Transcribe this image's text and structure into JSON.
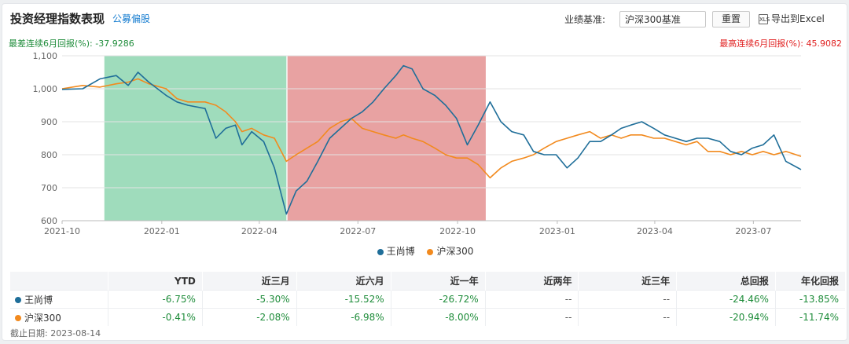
{
  "header": {
    "title": "投资经理指数表现",
    "subtitle": "公募偏股",
    "benchmark_label": "业绩基准:",
    "benchmark_value": "沪深300基准",
    "reset_label": "重置",
    "export_icon": "XLS",
    "export_label": "导出到Excel"
  },
  "stats": {
    "worst": "最差连续6月回报(%): -37.9286",
    "best": "最高连续6月回报(%): 45.9082"
  },
  "colors": {
    "series1": "#1f6e99",
    "series2": "#f28a1e",
    "best_period": "#e8a2a2",
    "worst_period": "#9fdcbc"
  },
  "chart_data": {
    "type": "line",
    "xlim": [
      "2021-10-01",
      "2023-08-14"
    ],
    "ylim": [
      600,
      1100
    ],
    "yticks": [
      600,
      700,
      800,
      900,
      1000,
      1100
    ],
    "ytick_labels": [
      "600",
      "700",
      "800",
      "900",
      "1,000",
      "1,100"
    ],
    "xtick_labels": [
      "2021-10",
      "2022-01",
      "2022-04",
      "2022-07",
      "2022-10",
      "2023-01",
      "2023-04",
      "2023-07"
    ],
    "xtick_dates": [
      "2021-10-01",
      "2022-01-01",
      "2022-04-01",
      "2022-07-01",
      "2022-10-01",
      "2023-01-01",
      "2023-04-01",
      "2023-07-01"
    ],
    "worst_period": [
      "2021-11-09",
      "2022-04-26"
    ],
    "best_period": [
      "2022-04-27",
      "2022-10-27"
    ],
    "series": [
      {
        "name": "王尚博",
        "x": [
          "2021-10-01",
          "2021-10-20",
          "2021-11-05",
          "2021-11-20",
          "2021-12-01",
          "2021-12-10",
          "2021-12-20",
          "2022-01-05",
          "2022-01-15",
          "2022-01-25",
          "2022-02-10",
          "2022-02-20",
          "2022-03-01",
          "2022-03-10",
          "2022-03-16",
          "2022-03-25",
          "2022-04-05",
          "2022-04-15",
          "2022-04-26",
          "2022-05-05",
          "2022-05-15",
          "2022-05-25",
          "2022-06-05",
          "2022-06-15",
          "2022-06-25",
          "2022-07-05",
          "2022-07-15",
          "2022-07-25",
          "2022-08-05",
          "2022-08-12",
          "2022-08-20",
          "2022-08-30",
          "2022-09-10",
          "2022-09-20",
          "2022-09-30",
          "2022-10-10",
          "2022-10-20",
          "2022-10-31",
          "2022-11-10",
          "2022-11-20",
          "2022-12-01",
          "2022-12-10",
          "2022-12-20",
          "2022-12-31",
          "2023-01-10",
          "2023-01-20",
          "2023-01-31",
          "2023-02-10",
          "2023-02-20",
          "2023-03-01",
          "2023-03-10",
          "2023-03-20",
          "2023-03-31",
          "2023-04-10",
          "2023-04-20",
          "2023-04-30",
          "2023-05-10",
          "2023-05-20",
          "2023-05-31",
          "2023-06-10",
          "2023-06-20",
          "2023-06-30",
          "2023-07-10",
          "2023-07-20",
          "2023-07-31",
          "2023-08-14"
        ],
        "values": [
          998,
          1000,
          1030,
          1040,
          1010,
          1050,
          1020,
          980,
          960,
          950,
          940,
          850,
          880,
          890,
          830,
          870,
          840,
          760,
          620,
          690,
          720,
          780,
          850,
          880,
          910,
          930,
          960,
          1000,
          1040,
          1070,
          1060,
          1000,
          980,
          950,
          910,
          830,
          890,
          960,
          900,
          870,
          860,
          810,
          800,
          800,
          760,
          790,
          840,
          840,
          860,
          880,
          890,
          900,
          880,
          860,
          850,
          840,
          850,
          850,
          840,
          810,
          800,
          820,
          830,
          860,
          780,
          755
        ]
      },
      {
        "name": "沪深300",
        "x": [
          "2021-10-01",
          "2021-10-20",
          "2021-11-05",
          "2021-11-20",
          "2021-12-01",
          "2021-12-10",
          "2021-12-20",
          "2022-01-05",
          "2022-01-15",
          "2022-01-25",
          "2022-02-10",
          "2022-02-20",
          "2022-03-01",
          "2022-03-10",
          "2022-03-16",
          "2022-03-25",
          "2022-04-05",
          "2022-04-15",
          "2022-04-26",
          "2022-05-05",
          "2022-05-15",
          "2022-05-25",
          "2022-06-05",
          "2022-06-15",
          "2022-06-25",
          "2022-07-05",
          "2022-07-15",
          "2022-07-25",
          "2022-08-05",
          "2022-08-12",
          "2022-08-20",
          "2022-08-30",
          "2022-09-10",
          "2022-09-20",
          "2022-09-30",
          "2022-10-10",
          "2022-10-20",
          "2022-10-31",
          "2022-11-10",
          "2022-11-20",
          "2022-12-01",
          "2022-12-10",
          "2022-12-20",
          "2022-12-31",
          "2023-01-10",
          "2023-01-20",
          "2023-01-31",
          "2023-02-10",
          "2023-02-20",
          "2023-03-01",
          "2023-03-10",
          "2023-03-20",
          "2023-03-31",
          "2023-04-10",
          "2023-04-20",
          "2023-04-30",
          "2023-05-10",
          "2023-05-20",
          "2023-05-31",
          "2023-06-10",
          "2023-06-20",
          "2023-06-30",
          "2023-07-10",
          "2023-07-20",
          "2023-07-31",
          "2023-08-14"
        ],
        "values": [
          1000,
          1010,
          1005,
          1015,
          1020,
          1030,
          1015,
          1000,
          970,
          960,
          960,
          950,
          930,
          900,
          870,
          880,
          860,
          850,
          780,
          800,
          820,
          840,
          880,
          900,
          910,
          880,
          870,
          860,
          850,
          860,
          850,
          840,
          820,
          800,
          790,
          790,
          770,
          730,
          760,
          780,
          790,
          800,
          820,
          840,
          850,
          860,
          870,
          850,
          860,
          850,
          860,
          860,
          850,
          850,
          840,
          830,
          840,
          810,
          810,
          800,
          810,
          800,
          810,
          800,
          810,
          795
        ]
      }
    ]
  },
  "table": {
    "headers": [
      "",
      "YTD",
      "近三月",
      "近六月",
      "近一年",
      "近两年",
      "近三年",
      "总回报",
      "年化回报"
    ],
    "rows": [
      {
        "name": "王尚博",
        "cells": [
          "-6.75%",
          "-5.30%",
          "-15.52%",
          "-26.72%",
          "--",
          "--",
          "-24.46%",
          "-13.85%"
        ]
      },
      {
        "name": "沪深300",
        "cells": [
          "-0.41%",
          "-2.08%",
          "-6.98%",
          "-8.00%",
          "--",
          "--",
          "-20.94%",
          "-11.74%"
        ]
      }
    ]
  },
  "footer": {
    "as_of": "截止日期: 2023-08-14"
  }
}
